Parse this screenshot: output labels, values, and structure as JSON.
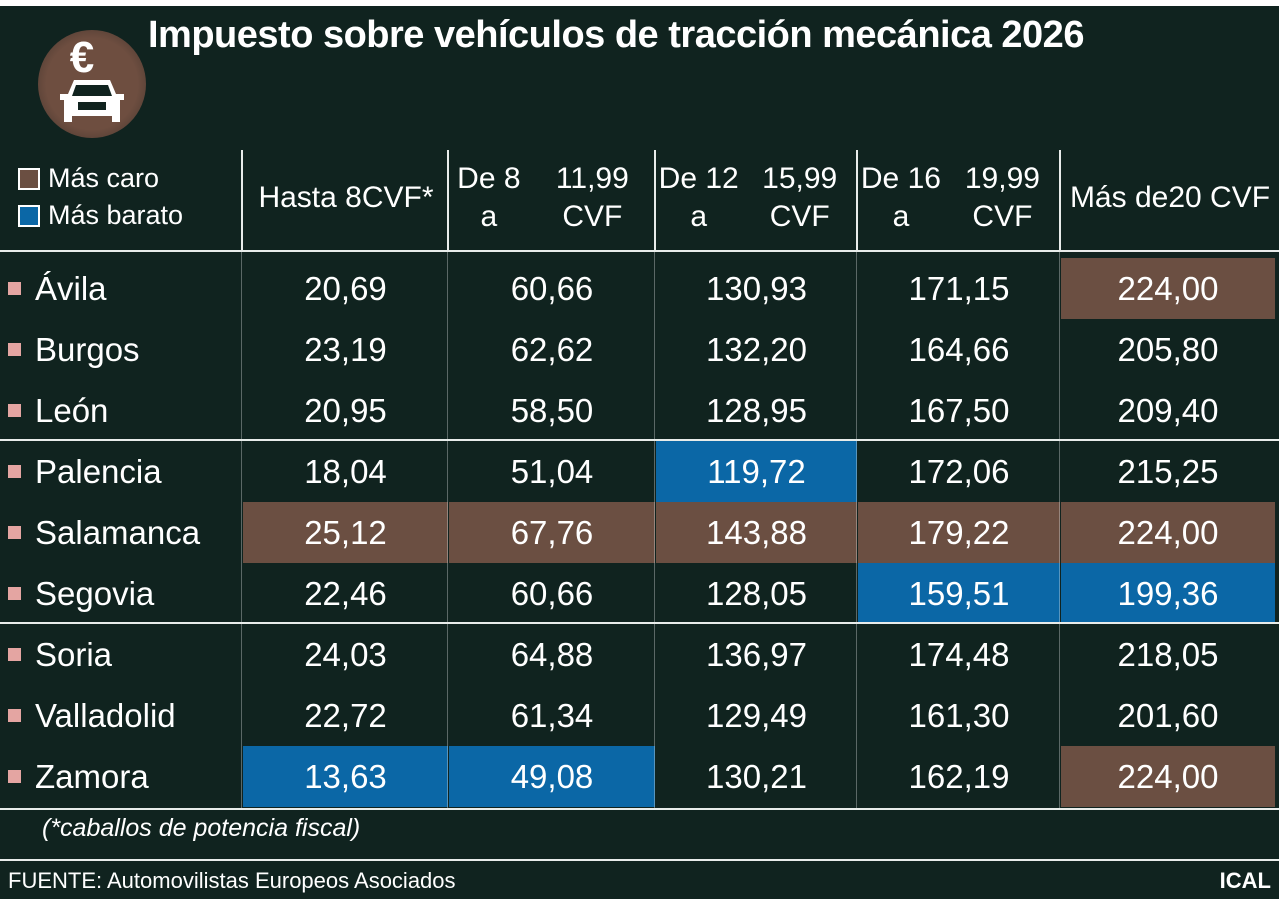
{
  "title": "Impuesto sobre vehículos de tracción mecánica 2026",
  "logo": {
    "icons": [
      "euro-icon",
      "car-icon"
    ],
    "symbol": "€"
  },
  "colors": {
    "background": "#10231f",
    "mas_caro": "#6b4f42",
    "mas_barato": "#0b67a6",
    "bullet": "#e4a5a2"
  },
  "legend": [
    {
      "label": "Más caro",
      "color": "#6b4f42"
    },
    {
      "label": "Más barato",
      "color": "#0b67a6"
    }
  ],
  "chart_data": {
    "type": "table",
    "title": "Impuesto sobre vehículos de tracción mecánica 2026",
    "columns": [
      [
        "Hasta 8",
        "CVF*"
      ],
      [
        "De 8 a",
        "11,99 CVF"
      ],
      [
        "De 12 a",
        "15,99 CVF"
      ],
      [
        "De 16 a",
        "19,99 CVF"
      ],
      [
        "Más de",
        "20 CVF"
      ]
    ],
    "rows": [
      {
        "province": "Ávila",
        "values": [
          "20,69",
          "60,66",
          "130,93",
          "171,15",
          "224,00"
        ],
        "highlight": [
          "",
          "",
          "",
          "",
          "caro"
        ]
      },
      {
        "province": "Burgos",
        "values": [
          "23,19",
          "62,62",
          "132,20",
          "164,66",
          "205,80"
        ],
        "highlight": [
          "",
          "",
          "",
          "",
          ""
        ]
      },
      {
        "province": "León",
        "values": [
          "20,95",
          "58,50",
          "128,95",
          "167,50",
          "209,40"
        ],
        "highlight": [
          "",
          "",
          "",
          "",
          ""
        ]
      },
      {
        "province": "Palencia",
        "values": [
          "18,04",
          "51,04",
          "119,72",
          "172,06",
          "215,25"
        ],
        "highlight": [
          "",
          "",
          "barato",
          "",
          ""
        ]
      },
      {
        "province": "Salamanca",
        "values": [
          "25,12",
          "67,76",
          "143,88",
          "179,22",
          "224,00"
        ],
        "highlight": [
          "caro",
          "caro",
          "caro",
          "caro",
          "caro"
        ]
      },
      {
        "province": "Segovia",
        "values": [
          "22,46",
          "60,66",
          "128,05",
          "159,51",
          "199,36"
        ],
        "highlight": [
          "",
          "",
          "",
          "barato",
          "barato"
        ]
      },
      {
        "province": "Soria",
        "values": [
          "24,03",
          "64,88",
          "136,97",
          "174,48",
          "218,05"
        ],
        "highlight": [
          "",
          "",
          "",
          "",
          ""
        ]
      },
      {
        "province": "Valladolid",
        "values": [
          "22,72",
          "61,34",
          "129,49",
          "161,30",
          "201,60"
        ],
        "highlight": [
          "",
          "",
          "",
          "",
          ""
        ]
      },
      {
        "province": "Zamora",
        "values": [
          "13,63",
          "49,08",
          "130,21",
          "162,19",
          "224,00"
        ],
        "highlight": [
          "barato",
          "barato",
          "",
          "",
          "caro"
        ]
      }
    ]
  },
  "footnote": "(*caballos de potencia fiscal)",
  "source": "FUENTE: Automovilistas Europeos Asociados",
  "brand": "ICAL"
}
